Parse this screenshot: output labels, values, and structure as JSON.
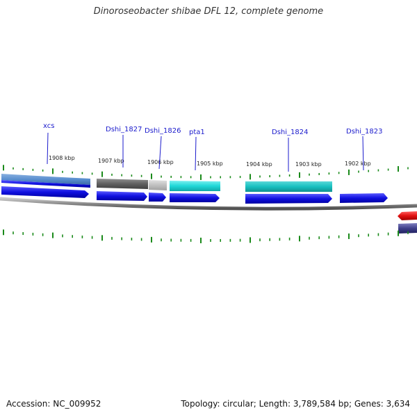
{
  "title": "Dinoroseobacter shibae DFL 12, complete genome",
  "footer": {
    "accession": "Accession: NC_009952",
    "topology": "Topology: circular; Length: 3,789,584 bp; Genes: 3,634"
  },
  "ruler": {
    "labels": [
      "1908 kbp",
      "1907 kbp",
      "1906 kbp",
      "1905 kbp",
      "1904 kbp",
      "1903 kbp",
      "1902 kbp"
    ]
  },
  "genes": [
    {
      "name": "xcs",
      "color": "#1010e0"
    },
    {
      "name": "Dshi_1827",
      "color": "#1010e0"
    },
    {
      "name": "Dshi_1826",
      "color": "#1010e0"
    },
    {
      "name": "pta1",
      "color": "#1010e0"
    },
    {
      "name": "Dshi_1824",
      "color": "#1010e0"
    },
    {
      "name": "Dshi_1823",
      "color": "#1010e0"
    }
  ],
  "colors": {
    "forward_cds": "#1010e0",
    "reverse_cds": "#e01010",
    "backbone": "#8a8a8a",
    "tick": "#1a8a1a",
    "cog_blue": "#5a8fd0",
    "cog_grey": "#606060",
    "cog_light_grey": "#c0c0c0",
    "cog_cyan": "#20d8d8",
    "cog_purple": "#40408a"
  }
}
